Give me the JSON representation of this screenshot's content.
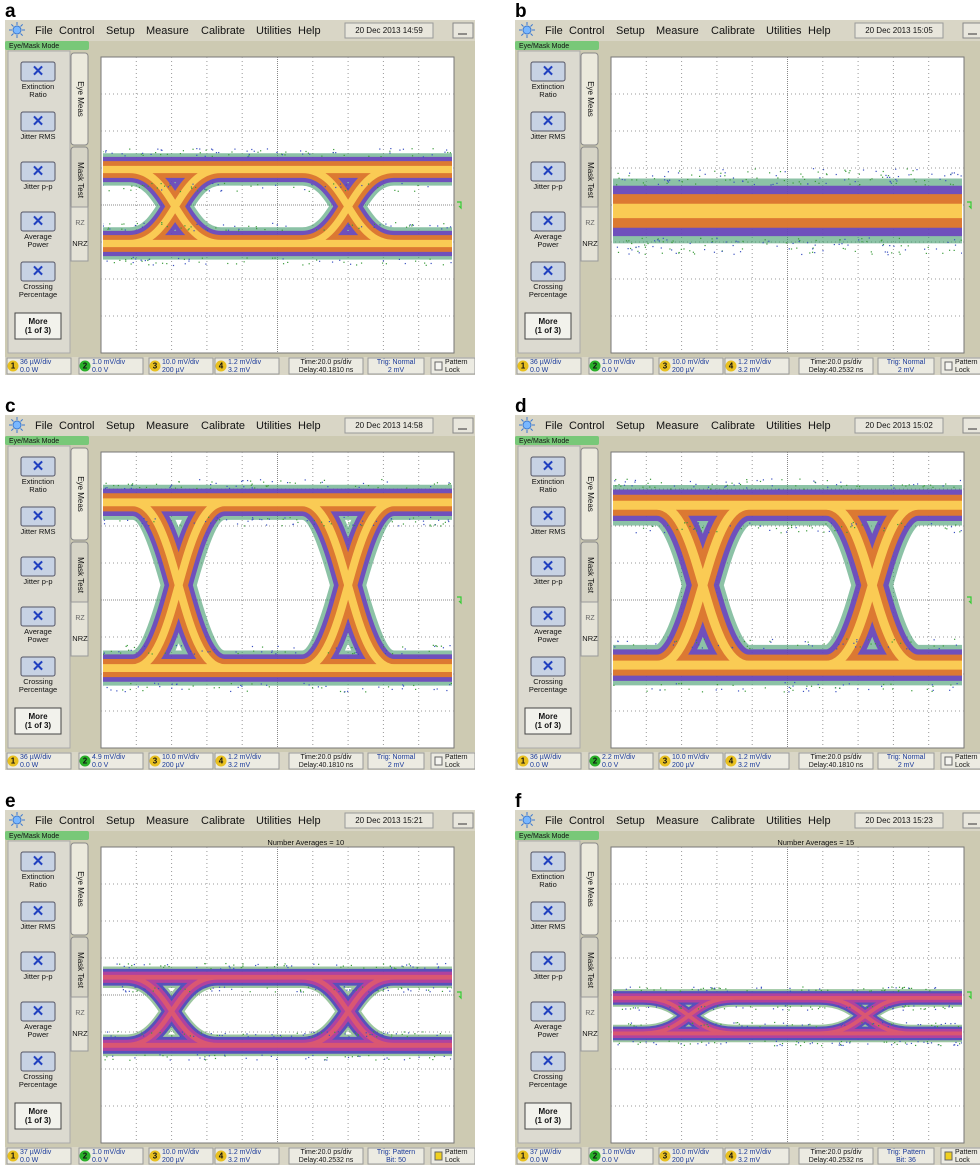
{
  "ui": {
    "menu": [
      "File",
      "Control",
      "Setup",
      "Measure",
      "Calibrate",
      "Utilities",
      "Help"
    ],
    "mode": "Eye/Mask Mode",
    "buttons": [
      [
        "Extinction",
        "Ratio"
      ],
      [
        "Jitter RMS"
      ],
      [
        "Jitter p-p"
      ],
      [
        "Average",
        "Power"
      ],
      [
        "Crossing",
        "Percentage"
      ]
    ],
    "more": [
      "More",
      "(1 of 3)"
    ],
    "tabs": [
      "Eye Meas",
      "Mask Test"
    ],
    "rz": "RZ",
    "nrz": "NRZ",
    "channel_numbers": [
      "1",
      "2",
      "3",
      "4"
    ],
    "ch1_offset": "0.0 W",
    "ch2_offset": "0.0 V",
    "ch3_scale": "10.0 mV/div",
    "ch3_offset": "200 µV",
    "ch4_scale": "1.2 mV/div",
    "ch4_offset": "3.2 mV",
    "time": "Time:20.0 ps/div",
    "pattern": [
      "Pattern",
      "Lock"
    ]
  },
  "panels": [
    {
      "label": "a",
      "date": "20 Dec 2013  14:59",
      "ch1_scale": "36 µW/div",
      "ch2_scale": "1.0 mV/div",
      "delay": "Delay:40.1810 ns",
      "trig": "Trig: Normal",
      "trig_detail": "2 mV"
    },
    {
      "label": "b",
      "date": "20 Dec 2013  15:05",
      "ch1_scale": "36 µW/div",
      "ch2_scale": "1.0 mV/div",
      "delay": "Delay:40.2532 ns",
      "trig": "Trig: Normal",
      "trig_detail": "2 mV"
    },
    {
      "label": "c",
      "date": "20 Dec 2013  14:58",
      "ch1_scale": "36 µW/div",
      "ch2_scale": "4.9 mV/div",
      "delay": "Delay:40.1810 ns",
      "trig": "Trig: Normal",
      "trig_detail": "2 mV"
    },
    {
      "label": "d",
      "date": "20 Dec 2013  15:02",
      "ch1_scale": "36 µW/div",
      "ch2_scale": "2.2 mV/div",
      "delay": "Delay:40.1810 ns",
      "trig": "Trig: Normal",
      "trig_detail": "2 mV"
    },
    {
      "label": "e",
      "date": "20 Dec 2013  15:21",
      "ch1_scale": "37 µW/div",
      "ch2_scale": "1.0 mV/div",
      "delay": "Delay:40.2532 ns",
      "trig": "Trig: Pattern",
      "trig_detail": "Bit: 50",
      "averages": "Number Averages =  10"
    },
    {
      "label": "f",
      "date": "20 Dec 2013  15:23",
      "ch1_scale": "37 µW/div",
      "ch2_scale": "1.0 mV/div",
      "delay": "Delay:40.2532 ns",
      "trig": "Trig: Pattern",
      "trig_detail": "Bit: 36",
      "averages": "Number Averages =  15"
    }
  ]
}
